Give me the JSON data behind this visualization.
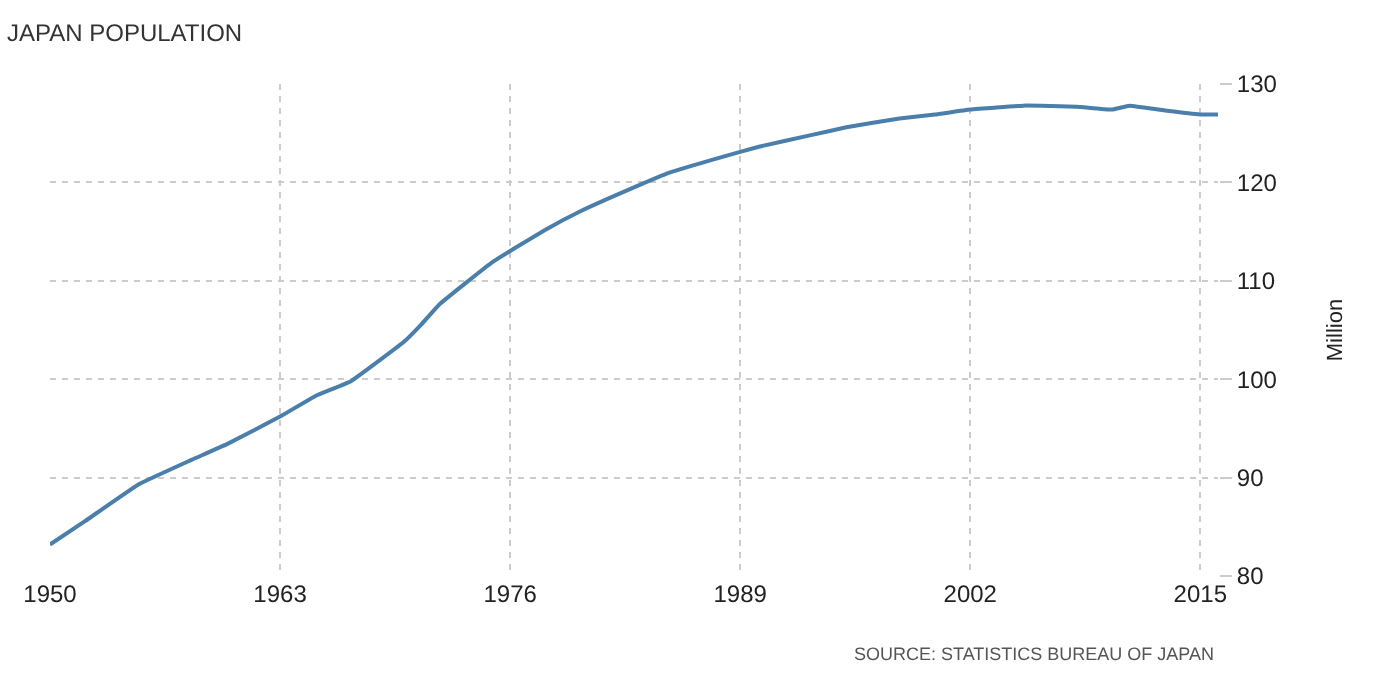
{
  "chart_data": {
    "type": "line",
    "title": "JAPAN POPULATION",
    "y2label": "Million",
    "annotations": [
      "SOURCE: STATISTICS BUREAU OF JAPAN"
    ],
    "x": [
      1950,
      1952,
      1955,
      1958,
      1960,
      1963,
      1965,
      1967,
      1970,
      1971,
      1972,
      1975,
      1978,
      1980,
      1983,
      1985,
      1988,
      1990,
      1993,
      1995,
      1998,
      2000,
      2002,
      2005,
      2008,
      2010,
      2011,
      2013,
      2015,
      2016
    ],
    "series": [
      {
        "color": "#4a7eab",
        "axis": "y2",
        "values": [
          83.2,
          85.6,
          89.3,
          91.8,
          93.4,
          96.2,
          98.3,
          99.8,
          103.8,
          105.6,
          107.6,
          111.9,
          115.2,
          117.1,
          119.5,
          121.0,
          122.6,
          123.6,
          124.8,
          125.6,
          126.5,
          126.9,
          127.4,
          127.8,
          127.7,
          127.4,
          127.8,
          127.3,
          126.9,
          126.9
        ]
      }
    ],
    "xlim": [
      1950,
      2016
    ],
    "xticks": [
      1950,
      1963,
      1976,
      1989,
      2002,
      2015
    ],
    "y2lim": [
      80,
      130
    ],
    "y2ticks": [
      80,
      90,
      100,
      110,
      120,
      130
    ],
    "grid": true,
    "legend": false,
    "marker": "none",
    "line_style": "solid"
  }
}
